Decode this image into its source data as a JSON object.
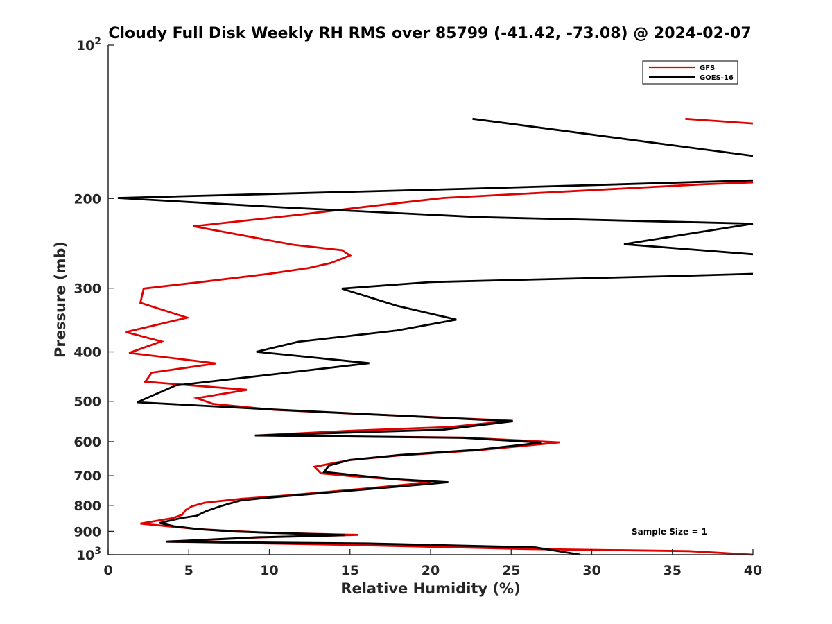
{
  "chart_data": {
    "type": "line",
    "title": "Cloudy Full Disk Weekly RH RMS over 85799 (-41.42, -73.08) @ 2024-02-07",
    "xlabel": "Relative Humidity (%)",
    "ylabel": "Pressure (mb)",
    "xlim": [
      0,
      40
    ],
    "ylim": [
      100,
      1000
    ],
    "y_scale": "log",
    "y_reversed": true,
    "x_ticks": [
      0,
      5,
      10,
      15,
      20,
      25,
      30,
      35,
      40
    ],
    "x_tick_labels": [
      "0",
      "5",
      "10",
      "15",
      "20",
      "25",
      "30",
      "35",
      "40"
    ],
    "y_ticks": [
      100,
      200,
      300,
      400,
      500,
      600,
      700,
      800,
      900,
      1000
    ],
    "y_tick_labels": [
      {
        "base": "10",
        "exp": "2"
      },
      {
        "base": "200",
        "exp": ""
      },
      {
        "base": "300",
        "exp": ""
      },
      {
        "base": "400",
        "exp": ""
      },
      {
        "base": "500",
        "exp": ""
      },
      {
        "base": "600",
        "exp": ""
      },
      {
        "base": "700",
        "exp": ""
      },
      {
        "base": "800",
        "exp": ""
      },
      {
        "base": "900",
        "exp": ""
      },
      {
        "base": "10",
        "exp": "3"
      }
    ],
    "grid": false,
    "legend_position": "top-right",
    "annotation": "Sample Size = 1",
    "series": [
      {
        "name": "GFS",
        "color": "#e00000",
        "segments": [
          [
            [
              35.8,
              139.5
            ],
            [
              40,
              142.5
            ]
          ],
          [
            [
              40,
              186
            ],
            [
              37,
              187.5
            ],
            [
              20.8,
              199.5
            ],
            [
              16.5,
              206.7
            ],
            [
              12,
              215
            ],
            [
              5.3,
              226.8
            ],
            [
              11.5,
              246.6
            ],
            [
              14.5,
              252.6
            ],
            [
              15,
              258.7
            ],
            [
              13.8,
              267.8
            ],
            [
              12.4,
              274
            ],
            [
              10,
              281.1
            ],
            [
              5.8,
              291.7
            ],
            [
              2.2,
              300.6
            ],
            [
              2,
              320.4
            ],
            [
              4.9,
              342.7
            ],
            [
              1.1,
              365.8
            ],
            [
              3.3,
              381.5
            ],
            [
              1.3,
              401.9
            ],
            [
              6.7,
              421.3
            ],
            [
              2.7,
              439.4
            ],
            [
              2.3,
              457.7
            ],
            [
              8.6,
              474.8
            ],
            [
              5.5,
              493
            ],
            [
              6.5,
              505.9
            ],
            [
              10.3,
              519.7
            ],
            [
              15,
              528.5
            ],
            [
              25.1,
              546
            ],
            [
              21.2,
              561.7
            ],
            [
              15,
              571.3
            ],
            [
              9.4,
              583.3
            ],
            [
              22,
              589.2
            ],
            [
              28,
              602
            ],
            [
              23,
              623.4
            ],
            [
              18,
              638.9
            ],
            [
              15,
              652.1
            ],
            [
              12.8,
              672.1
            ],
            [
              13.2,
              692.4
            ],
            [
              15,
              701.1
            ],
            [
              17.5,
              710.6
            ],
            [
              20,
              721.2
            ],
            [
              16.1,
              741.2
            ],
            [
              11.2,
              764.6
            ],
            [
              8.3,
              776.5
            ],
            [
              6,
              790.5
            ],
            [
              5.2,
              803.1
            ],
            [
              4.8,
              817.6
            ],
            [
              4.6,
              834.6
            ],
            [
              4,
              847.5
            ],
            [
              2,
              868.8
            ],
            [
              5.5,
              890.6
            ],
            [
              9.7,
              905.4
            ],
            [
              15.5,
              914.4
            ],
            [
              9.2,
              925.4
            ],
            [
              3.8,
              942.7
            ],
            [
              15,
              956.7
            ],
            [
              26,
              974.6
            ],
            [
              36,
              983.9
            ],
            [
              40,
              1000
            ]
          ]
        ]
      },
      {
        "name": "GOES-16",
        "color": "#000000",
        "segments": [
          [
            [
              22.6,
              139.5
            ],
            [
              40,
              165
            ]
          ],
          [
            [
              40,
              184.3
            ],
            [
              22,
              191.5
            ],
            [
              0.6,
              199.5
            ],
            [
              11,
              208.4
            ],
            [
              23,
              217.6
            ],
            [
              40,
              224.1
            ],
            [
              32,
              245.9
            ],
            [
              40,
              257.4
            ]
          ],
          [
            [
              40,
              281.2
            ],
            [
              35.3,
              283.9
            ],
            [
              20,
              291.9
            ],
            [
              14.5,
              300.6
            ],
            [
              17.9,
              324.8
            ],
            [
              21.6,
              345.8
            ],
            [
              17.9,
              363.3
            ],
            [
              11.8,
              382.1
            ],
            [
              9.2,
              399.9
            ],
            [
              16.2,
              420.9
            ],
            [
              11,
              440
            ],
            [
              4.2,
              465.5
            ],
            [
              1.8,
              502.1
            ],
            [
              9.9,
              518.3
            ],
            [
              17,
              531.7
            ],
            [
              25.1,
              547.3
            ],
            [
              20.8,
              568.4
            ],
            [
              9.1,
              583.6
            ],
            [
              22,
              589.8
            ],
            [
              26.9,
              602.6
            ],
            [
              23,
              622.2
            ],
            [
              18.1,
              637.4
            ],
            [
              15,
              651.6
            ],
            [
              13.7,
              668.3
            ],
            [
              13.4,
              688
            ],
            [
              16,
              701.9
            ],
            [
              17.8,
              711.1
            ],
            [
              21.1,
              720.8
            ],
            [
              16.8,
              740.7
            ],
            [
              11.7,
              764.2
            ],
            [
              9.5,
              775
            ],
            [
              8.2,
              782.9
            ],
            [
              7,
              802.7
            ],
            [
              6.1,
              821.1
            ],
            [
              5.5,
              838.4
            ],
            [
              4.5,
              847.8
            ],
            [
              3.2,
              866.3
            ],
            [
              4.1,
              879.4
            ],
            [
              5.6,
              891.2
            ],
            [
              7.8,
              901
            ],
            [
              14.7,
              915.5
            ],
            [
              9.3,
              924.2
            ],
            [
              3.6,
              942.8
            ],
            [
              16,
              950.6
            ],
            [
              26.5,
              967.5
            ],
            [
              29.3,
              1000
            ]
          ]
        ]
      }
    ]
  }
}
